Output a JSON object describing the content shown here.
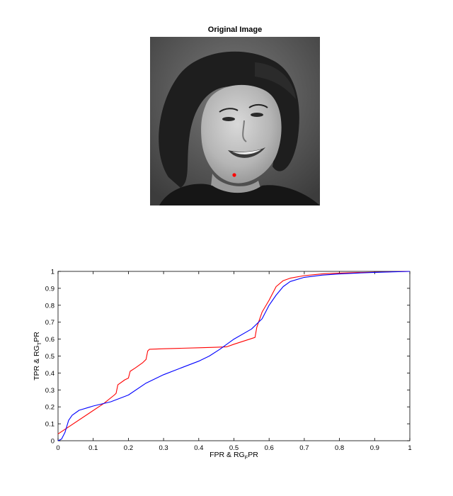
{
  "image_panel": {
    "title": "Original Image",
    "marker_color": "#ff0000"
  },
  "chart_data": {
    "type": "line",
    "xlabel": {
      "pre": "FPR & RG",
      "sub": "F",
      "post": "PR"
    },
    "ylabel": {
      "pre": "TPR & RG",
      "sub": "T",
      "post": "PR"
    },
    "xlim": [
      0,
      1
    ],
    "ylim": [
      0,
      1
    ],
    "grid": false,
    "xticks": [
      0,
      0.1,
      0.2,
      0.3,
      0.4,
      0.5,
      0.6,
      0.7,
      0.8,
      0.9,
      1
    ],
    "yticks": [
      0,
      0.1,
      0.2,
      0.3,
      0.4,
      0.5,
      0.6,
      0.7,
      0.8,
      0.9,
      1
    ],
    "xtick_labels": [
      "0",
      "0.1",
      "0.2",
      "0.3",
      "0.4",
      "0.5",
      "0.6",
      "0.7",
      "0.8",
      "0.9",
      "1"
    ],
    "ytick_labels": [
      "0",
      "0.1",
      "0.2",
      "0.3",
      "0.4",
      "0.5",
      "0.6",
      "0.7",
      "0.8",
      "0.9",
      "1"
    ],
    "series": [
      {
        "color": "#ff0000",
        "x": [
          0,
          0.13,
          0.16,
          0.165,
          0.17,
          0.19,
          0.2,
          0.205,
          0.22,
          0.24,
          0.25,
          0.255,
          0.26,
          0.3,
          0.35,
          0.4,
          0.45,
          0.48,
          0.5,
          0.56,
          0.565,
          0.57,
          0.58,
          0.6,
          0.62,
          0.64,
          0.66,
          0.7,
          0.75,
          0.8,
          0.85,
          0.9,
          0.95,
          1.0
        ],
        "y": [
          0.04,
          0.22,
          0.27,
          0.28,
          0.33,
          0.36,
          0.37,
          0.41,
          0.43,
          0.46,
          0.48,
          0.53,
          0.54,
          0.543,
          0.546,
          0.549,
          0.552,
          0.555,
          0.57,
          0.61,
          0.67,
          0.7,
          0.76,
          0.83,
          0.91,
          0.945,
          0.96,
          0.975,
          0.985,
          0.99,
          0.993,
          0.995,
          0.998,
          1.0
        ]
      },
      {
        "color": "#0000ff",
        "x": [
          0,
          0.01,
          0.02,
          0.03,
          0.04,
          0.06,
          0.1,
          0.15,
          0.2,
          0.25,
          0.3,
          0.35,
          0.4,
          0.43,
          0.46,
          0.5,
          0.55,
          0.58,
          0.6,
          0.62,
          0.64,
          0.66,
          0.7,
          0.75,
          0.8,
          0.85,
          0.9,
          0.95,
          1.0
        ],
        "y": [
          0.0,
          0.01,
          0.05,
          0.12,
          0.15,
          0.18,
          0.205,
          0.23,
          0.27,
          0.34,
          0.39,
          0.43,
          0.47,
          0.5,
          0.54,
          0.6,
          0.66,
          0.72,
          0.8,
          0.86,
          0.91,
          0.94,
          0.965,
          0.978,
          0.985,
          0.99,
          0.994,
          0.997,
          1.0
        ]
      }
    ]
  }
}
